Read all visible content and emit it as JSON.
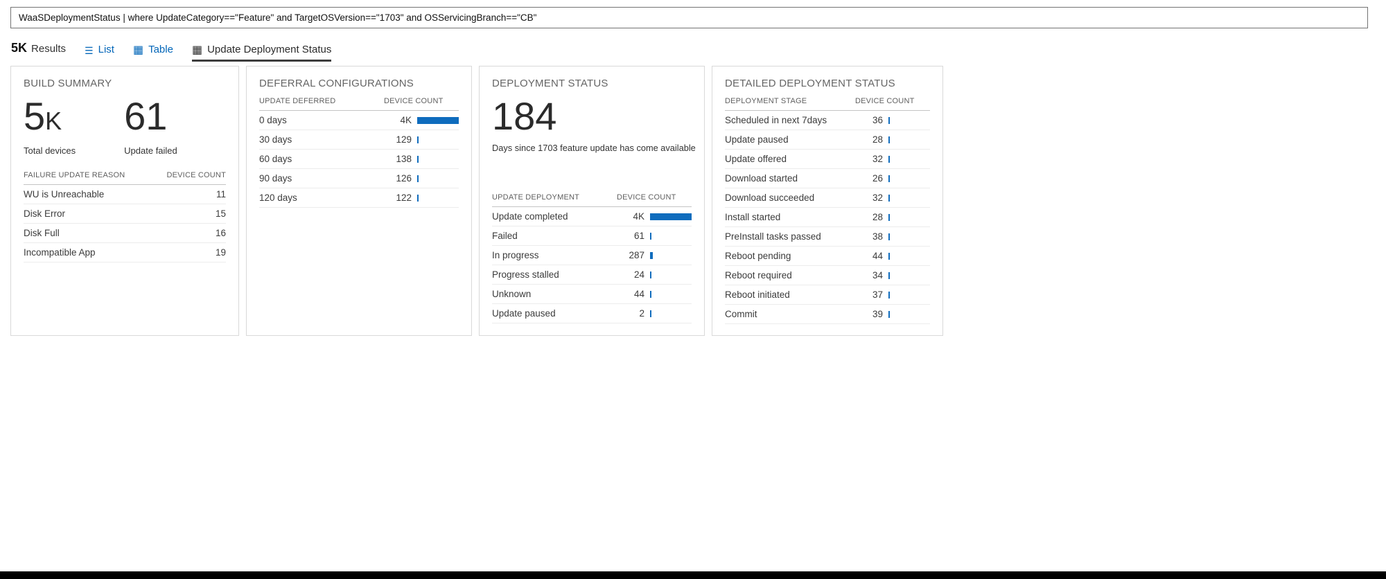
{
  "query_bar": {
    "value": "WaaSDeploymentStatus | where UpdateCategory==\"Feature\" and TargetOSVersion==\"1703\" and OSServicingBranch==\"CB\""
  },
  "results_bar": {
    "count": "5K",
    "count_label": "Results",
    "tabs": [
      {
        "label": "List",
        "icon": "list-icon",
        "active": false
      },
      {
        "label": "Table",
        "icon": "table-icon",
        "active": false
      },
      {
        "label": "Update Deployment Status",
        "icon": "grid-icon",
        "active": true
      }
    ]
  },
  "colors": {
    "bar_blue": "#0f6cbd",
    "tab_blue": "#0065b8",
    "active_underline": "#3d3d3d"
  },
  "cards": {
    "build_summary": {
      "title": "BUILD SUMMARY",
      "metrics": [
        {
          "value": "5",
          "suffix": "K",
          "label": "Total devices"
        },
        {
          "value": "61",
          "suffix": "",
          "label": "Update failed"
        }
      ],
      "table": {
        "headers": [
          "FAILURE UPDATE REASON",
          "DEVICE COUNT"
        ],
        "rows": [
          {
            "label": "WU is Unreachable",
            "count": "11"
          },
          {
            "label": "Disk Error",
            "count": "15"
          },
          {
            "label": "Disk Full",
            "count": "16"
          },
          {
            "label": "Incompatible App",
            "count": "19"
          }
        ]
      }
    },
    "deferral": {
      "title": "DEFERRAL CONFIGURATIONS",
      "table": {
        "headers": [
          "UPDATE DEFERRED",
          "DEVICE COUNT"
        ],
        "rows": [
          {
            "label": "0 days",
            "count": "4K",
            "value": 4000
          },
          {
            "label": "30 days",
            "count": "129",
            "value": 129
          },
          {
            "label": "60 days",
            "count": "138",
            "value": 138
          },
          {
            "label": "90 days",
            "count": "126",
            "value": 126
          },
          {
            "label": "120 days",
            "count": "122",
            "value": 122
          }
        ]
      }
    },
    "deployment_status": {
      "title": "DEPLOYMENT STATUS",
      "metric": {
        "value": "184",
        "caption": "Days since 1703 feature update has come available"
      },
      "table": {
        "headers": [
          "UPDATE DEPLOYMENT",
          "DEVICE COUNT"
        ],
        "rows": [
          {
            "label": "Update completed",
            "count": "4K",
            "value": 4000
          },
          {
            "label": "Failed",
            "count": "61",
            "value": 61
          },
          {
            "label": "In progress",
            "count": "287",
            "value": 287
          },
          {
            "label": "Progress stalled",
            "count": "24",
            "value": 24
          },
          {
            "label": "Unknown",
            "count": "44",
            "value": 44
          },
          {
            "label": "Update paused",
            "count": "2",
            "value": 2
          }
        ]
      }
    },
    "detailed_status": {
      "title": "DETAILED DEPLOYMENT STATUS",
      "table": {
        "headers": [
          "DEPLOYMENT STAGE",
          "DEVICE COUNT"
        ],
        "rows": [
          {
            "label": "Scheduled in next 7days",
            "count": "36",
            "value": 36
          },
          {
            "label": "Update paused",
            "count": "28",
            "value": 28
          },
          {
            "label": "Update offered",
            "count": "32",
            "value": 32
          },
          {
            "label": "Download started",
            "count": "26",
            "value": 26
          },
          {
            "label": "Download succeeded",
            "count": "32",
            "value": 32
          },
          {
            "label": "Install started",
            "count": "28",
            "value": 28
          },
          {
            "label": "PreInstall tasks passed",
            "count": "38",
            "value": 38
          },
          {
            "label": "Reboot pending",
            "count": "44",
            "value": 44
          },
          {
            "label": "Reboot required",
            "count": "34",
            "value": 34
          },
          {
            "label": "Reboot initiated",
            "count": "37",
            "value": 37
          },
          {
            "label": "Commit",
            "count": "39",
            "value": 39
          }
        ]
      }
    }
  }
}
